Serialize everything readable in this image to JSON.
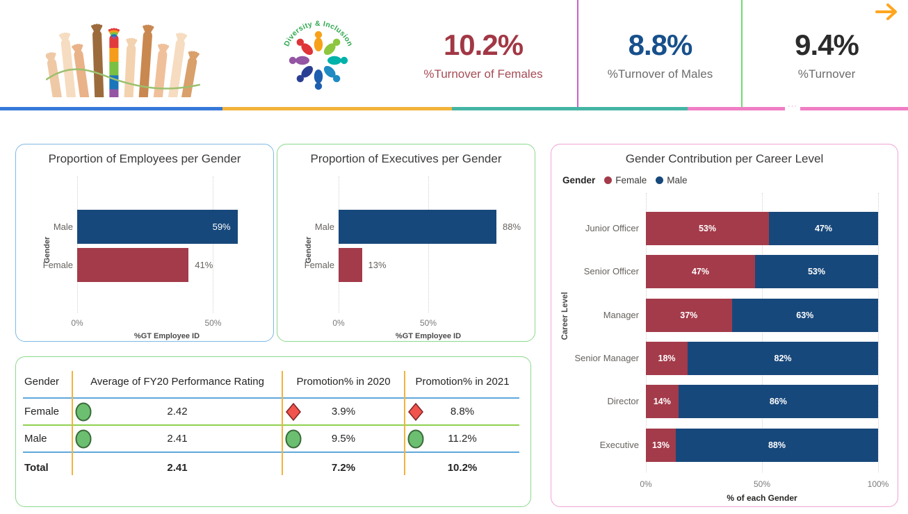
{
  "header": {
    "logo_text": "Diversity & Inclusion",
    "kpis": [
      {
        "value": "10.2%",
        "label": "%Turnover of Females",
        "value_color": "#A23845",
        "label_color": "#A64B54"
      },
      {
        "value": "8.8%",
        "label": "%Turnover of Males",
        "value_color": "#17508C",
        "label_color": "#6C6C6C"
      },
      {
        "value": "9.4%",
        "label": "%Turnover",
        "value_color": "#2B2B2B",
        "label_color": "#6C6C6C"
      }
    ],
    "divider_colors": [
      "#C95FC9",
      "#70D970"
    ],
    "stripe_segments": [
      {
        "color": "#3679D9",
        "width_pct": 24.5
      },
      {
        "color": "#F3B33C",
        "width_pct": 25.3
      },
      {
        "color": "#45B5A4",
        "width_pct": 25.9
      },
      {
        "color": "#F07EC4",
        "width_pct": 24.3
      }
    ],
    "nav_arrow_color": "#FFA51E"
  },
  "chart_data": [
    {
      "type": "bar",
      "orientation": "horizontal",
      "title": "Proportion of Employees per Gender",
      "categories": [
        "Male",
        "Female"
      ],
      "values": [
        59,
        41
      ],
      "labels": [
        "59%",
        "41%"
      ],
      "label_inside": [
        true,
        false
      ],
      "bar_colors": [
        "#17487B",
        "#A33B4A"
      ],
      "xlabel": "%GT Employee ID",
      "ylabel": "Gender",
      "xticks": [
        {
          "label": "0%",
          "v": 0
        },
        {
          "label": "50%",
          "v": 50
        }
      ],
      "xlim": [
        0,
        66
      ],
      "grid": true,
      "legend_position": "none"
    },
    {
      "type": "bar",
      "orientation": "horizontal",
      "title": "Proportion of Executives per Gender",
      "categories": [
        "Male",
        "Female"
      ],
      "values": [
        88,
        13
      ],
      "labels": [
        "88%",
        "13%"
      ],
      "label_inside": [
        false,
        false
      ],
      "bar_colors": [
        "#17487B",
        "#A33B4A"
      ],
      "xlabel": "%GT Employee ID",
      "ylabel": "Gender",
      "xticks": [
        {
          "label": "0%",
          "v": 0
        },
        {
          "label": "50%",
          "v": 50
        }
      ],
      "xlim": [
        0,
        100
      ],
      "grid": true,
      "legend_position": "none"
    },
    {
      "type": "stacked-bar",
      "orientation": "horizontal",
      "title": "Gender Contribution per Career Level",
      "categories": [
        "Junior Officer",
        "Senior Officer",
        "Manager",
        "Senior Manager",
        "Director",
        "Executive"
      ],
      "series": [
        {
          "name": "Female",
          "color": "#A33B4A",
          "values": [
            53,
            47,
            37,
            18,
            14,
            13
          ],
          "labels": [
            "53%",
            "47%",
            "37%",
            "18%",
            "14%",
            "13%"
          ]
        },
        {
          "name": "Male",
          "color": "#17487B",
          "values": [
            47,
            53,
            63,
            82,
            86,
            88
          ],
          "labels": [
            "47%",
            "53%",
            "63%",
            "82%",
            "86%",
            "88%"
          ]
        }
      ],
      "legend": {
        "title": "Gender"
      },
      "xlabel": "% of each Gender",
      "ylabel": "Career Level",
      "xticks": [
        {
          "label": "0%",
          "v": 0
        },
        {
          "label": "50%",
          "v": 50
        },
        {
          "label": "100%",
          "v": 100
        }
      ],
      "xlim": [
        0,
        100
      ],
      "grid": true,
      "legend_position": "top-left"
    }
  ],
  "table": {
    "columns": [
      "Gender",
      "Average of FY20 Performance Rating",
      "Promotion% in 2020",
      "Promotion% in 2021"
    ],
    "rows": [
      {
        "gender": "Female",
        "cells": [
          {
            "icon": "circle-green",
            "value": "2.42"
          },
          {
            "icon": "diamond-red",
            "value": "3.9%"
          },
          {
            "icon": "diamond-red",
            "value": "8.8%"
          }
        ]
      },
      {
        "gender": "Male",
        "cells": [
          {
            "icon": "circle-green",
            "value": "2.41"
          },
          {
            "icon": "circle-green",
            "value": "9.5%"
          },
          {
            "icon": "circle-green",
            "value": "11.2%"
          }
        ]
      }
    ],
    "total": {
      "gender": "Total",
      "cells": [
        {
          "value": "2.41"
        },
        {
          "value": "7.2%"
        },
        {
          "value": "10.2%"
        }
      ]
    },
    "line_colors": {
      "columns": "#F2B33D",
      "header": "#5FA8DC",
      "row": "#8FD14F"
    }
  }
}
